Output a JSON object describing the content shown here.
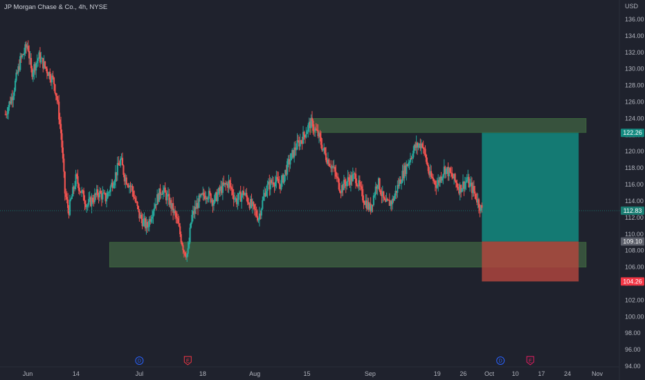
{
  "header": {
    "title": "JP Morgan Chase & Co., 4h, NYSE"
  },
  "colors": {
    "background": "#1f222d",
    "up": "#26a69a",
    "down": "#ef5350",
    "zone": "#4a7a4a",
    "target": "#138a80",
    "stop": "#b5473f",
    "current_line": "#1a7d73"
  },
  "chart_data": {
    "type": "candlestick",
    "title": "JP Morgan Chase & Co., 4h, NYSE",
    "currency_label": "USD",
    "ylim": [
      94,
      137
    ],
    "y_ticks": [
      "94.00",
      "96.00",
      "98.00",
      "100.00",
      "102.00",
      "104.00",
      "106.00",
      "108.00",
      "110.00",
      "112.00",
      "114.00",
      "116.00",
      "118.00",
      "120.00",
      "122.00",
      "124.00",
      "126.00",
      "128.00",
      "130.00",
      "132.00",
      "134.00",
      "136.00"
    ],
    "x_ticks": [
      {
        "label": "Jun",
        "date": "2022-06-01"
      },
      {
        "label": "14",
        "date": "2022-06-14"
      },
      {
        "label": "Jul",
        "date": "2022-07-01"
      },
      {
        "label": "18",
        "date": "2022-07-18"
      },
      {
        "label": "Aug",
        "date": "2022-08-01"
      },
      {
        "label": "15",
        "date": "2022-08-15"
      },
      {
        "label": "Sep",
        "date": "2022-09-01"
      },
      {
        "label": "19",
        "date": "2022-09-19"
      },
      {
        "label": "26",
        "date": "2022-09-26"
      },
      {
        "label": "Oct",
        "date": "2022-10-03"
      },
      {
        "label": "10",
        "date": "2022-10-10"
      },
      {
        "label": "17",
        "date": "2022-10-17"
      },
      {
        "label": "24",
        "date": "2022-10-24"
      },
      {
        "label": "Nov",
        "date": "2022-11-01"
      }
    ],
    "price_path": [
      [
        "2022-05-26",
        124.5
      ],
      [
        "2022-05-28",
        127
      ],
      [
        "2022-05-30",
        131
      ],
      [
        "2022-06-01",
        133
      ],
      [
        "2022-06-02",
        129.5
      ],
      [
        "2022-06-04",
        131.5
      ],
      [
        "2022-06-06",
        130
      ],
      [
        "2022-06-08",
        128.5
      ],
      [
        "2022-06-09",
        126
      ],
      [
        "2022-06-10",
        122
      ],
      [
        "2022-06-11",
        115
      ],
      [
        "2022-06-12",
        112.8
      ],
      [
        "2022-06-14",
        116.8
      ],
      [
        "2022-06-15",
        115.5
      ],
      [
        "2022-06-17",
        113.5
      ],
      [
        "2022-06-20",
        115
      ],
      [
        "2022-06-22",
        114.3
      ],
      [
        "2022-06-24",
        116.5
      ],
      [
        "2022-06-26",
        119
      ],
      [
        "2022-06-27",
        117
      ],
      [
        "2022-06-29",
        115.5
      ],
      [
        "2022-07-01",
        112.2
      ],
      [
        "2022-07-03",
        110.8
      ],
      [
        "2022-07-05",
        113.5
      ],
      [
        "2022-07-07",
        115.5
      ],
      [
        "2022-07-09",
        114
      ],
      [
        "2022-07-11",
        111.8
      ],
      [
        "2022-07-13",
        108
      ],
      [
        "2022-07-14",
        107.5
      ],
      [
        "2022-07-15",
        112
      ],
      [
        "2022-07-17",
        114
      ],
      [
        "2022-07-19",
        115
      ],
      [
        "2022-07-21",
        114
      ],
      [
        "2022-07-23",
        115.5
      ],
      [
        "2022-07-25",
        116.2
      ],
      [
        "2022-07-27",
        114
      ],
      [
        "2022-07-29",
        115
      ],
      [
        "2022-07-31",
        113.5
      ],
      [
        "2022-08-02",
        112
      ],
      [
        "2022-08-04",
        115.5
      ],
      [
        "2022-08-06",
        116.5
      ],
      [
        "2022-08-08",
        116
      ],
      [
        "2022-08-10",
        118.5
      ],
      [
        "2022-08-12",
        120.5
      ],
      [
        "2022-08-14",
        121.8
      ],
      [
        "2022-08-16",
        123.5
      ],
      [
        "2022-08-18",
        122
      ],
      [
        "2022-08-20",
        119.5
      ],
      [
        "2022-08-22",
        118
      ],
      [
        "2022-08-24",
        115.5
      ],
      [
        "2022-08-26",
        116.5
      ],
      [
        "2022-08-28",
        117
      ],
      [
        "2022-08-30",
        114.5
      ],
      [
        "2022-09-01",
        113
      ],
      [
        "2022-09-03",
        116.5
      ],
      [
        "2022-09-05",
        113.5
      ],
      [
        "2022-09-07",
        114
      ],
      [
        "2022-09-09",
        116.5
      ],
      [
        "2022-09-11",
        118.5
      ],
      [
        "2022-09-13",
        120.5
      ],
      [
        "2022-09-15",
        121
      ],
      [
        "2022-09-17",
        117
      ],
      [
        "2022-09-19",
        116
      ],
      [
        "2022-09-21",
        118
      ],
      [
        "2022-09-23",
        117
      ],
      [
        "2022-09-25",
        115.5
      ],
      [
        "2022-09-27",
        116.5
      ],
      [
        "2022-09-29",
        115
      ],
      [
        "2022-10-01",
        112.83
      ]
    ],
    "zones": [
      {
        "name": "resistance-zone",
        "start": "2022-08-16",
        "end": "2022-10-29",
        "low": 122.3,
        "high": 124.0
      },
      {
        "name": "support-zone",
        "start": "2022-06-23",
        "end": "2022-10-29",
        "low": 106.0,
        "high": 109.0
      }
    ],
    "position": {
      "start": "2022-10-01",
      "end": "2022-10-27",
      "target": 122.26,
      "entry": 109.1,
      "stop": 104.26
    },
    "current_price": 112.83,
    "price_labels": [
      {
        "value": "122.26",
        "price": 122.26,
        "color": "#138a80"
      },
      {
        "value": "112.83",
        "price": 112.83,
        "color": "#1a7d73"
      },
      {
        "value": "109.10",
        "price": 109.1,
        "color": "#5d606b"
      },
      {
        "value": "104.26",
        "price": 104.26,
        "color": "#f23645"
      }
    ],
    "events": [
      {
        "letter": "D",
        "date": "2022-07-01",
        "color": "#2962ff"
      },
      {
        "letter": "E",
        "date": "2022-07-14",
        "color": "#f23645"
      },
      {
        "letter": "D",
        "date": "2022-10-06",
        "color": "#2962ff"
      },
      {
        "letter": "E",
        "date": "2022-10-14",
        "color": "#e91e63"
      }
    ]
  }
}
